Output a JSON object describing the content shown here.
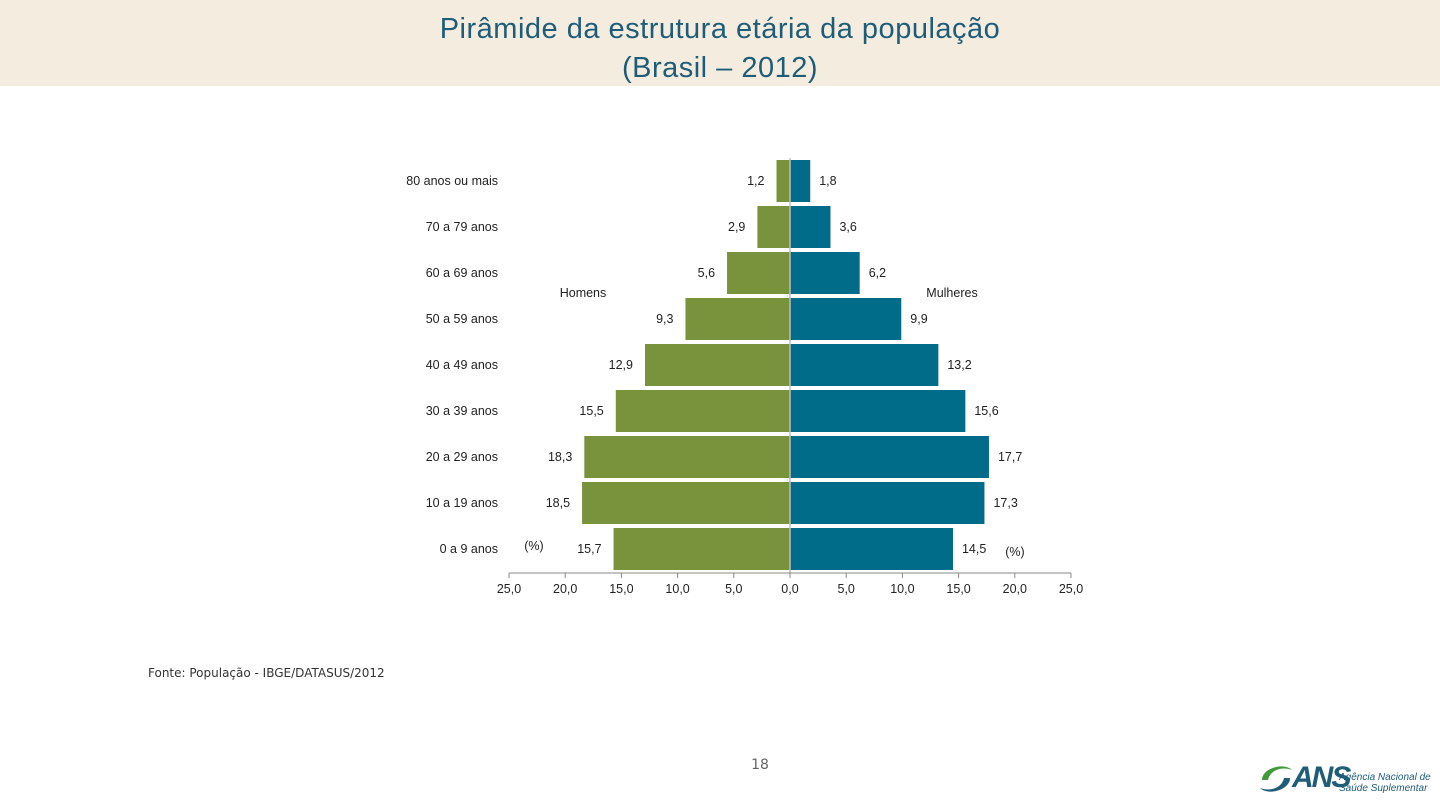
{
  "slide": {
    "title_line1": "Pirâmide da estrutura etária da população",
    "title_line2": "(Brasil – 2012)",
    "source": "Fonte: População - IBGE/DATASUS/2012",
    "page_number": "18"
  },
  "logo": {
    "abbr": "ANS",
    "name_line1": "Agência Nacional de",
    "name_line2": "Saúde Suplementar"
  },
  "colors": {
    "header_bg": "#f4ecdf",
    "title": "#1f5c78",
    "homens": "#78933c",
    "mulheres": "#006c8a"
  },
  "chart_data": {
    "type": "bar",
    "orientation": "horizontal-pyramid",
    "categories": [
      "80 anos ou mais",
      "70 a 79 anos",
      "60 a 69 anos",
      "50 a 59 anos",
      "40 a 49 anos",
      "30 a 39 anos",
      "20 a 29 anos",
      "10 a 19 anos",
      "0 a 9 anos"
    ],
    "series": [
      {
        "name": "Homens",
        "side": "left",
        "values": [
          1.2,
          2.9,
          5.6,
          9.3,
          12.9,
          15.5,
          18.3,
          18.5,
          15.7
        ],
        "labels": [
          "1,2",
          "2,9",
          "5,6",
          "9,3",
          "12,9",
          "15,5",
          "18,3",
          "18,5",
          "15,7"
        ]
      },
      {
        "name": "Mulheres",
        "side": "right",
        "values": [
          1.8,
          3.6,
          6.2,
          9.9,
          13.2,
          15.6,
          17.7,
          17.3,
          14.5
        ],
        "labels": [
          "1,8",
          "3,6",
          "6,2",
          "9,9",
          "13,2",
          "15,6",
          "17,7",
          "17,3",
          "14,5"
        ]
      }
    ],
    "xlim": [
      -25,
      25
    ],
    "x_ticks": [
      -25,
      -20,
      -15,
      -10,
      -5,
      0,
      5,
      10,
      15,
      20,
      25
    ],
    "x_tick_labels": [
      "25,0",
      "20,0",
      "15,0",
      "10,0",
      "5,0",
      "0,0",
      "5,0",
      "10,0",
      "15,0",
      "20,0",
      "25,0"
    ],
    "unit_label": "(%)",
    "grid": false
  }
}
